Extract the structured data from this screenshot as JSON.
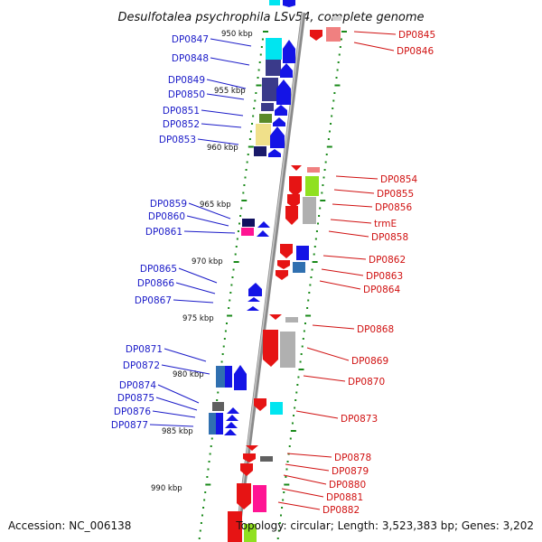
{
  "title": "Desulfotalea psychrophila LSv54, complete genome",
  "footer": {
    "accession": "Accession: NC_006138",
    "summary": "Topology: circular; Length: 3,523,383 bp; Genes: 3,202"
  },
  "scale_labels": [
    "950 kbp",
    "955 kbp",
    "960 kbp",
    "965 kbp",
    "970 kbp",
    "975 kbp",
    "980 kbp",
    "985 kbp",
    "990 kbp"
  ],
  "colors": {
    "minus_strand": "#1414e6",
    "plus_strand": "#e61414",
    "axis": "#8a8a8a",
    "ticks": "#1a8a1a"
  },
  "left_genes": [
    {
      "label": "DP0847",
      "color": "#00e5f0"
    },
    {
      "label": "DP0848",
      "color": "#3a3a8a"
    },
    {
      "label": "DP0849",
      "color": "#3a3a8a"
    },
    {
      "label": "DP0850",
      "color": "#3a3a8a"
    },
    {
      "label": "DP0851",
      "color": "#5a8a2a"
    },
    {
      "label": "DP0852",
      "color": "#f0e08a"
    },
    {
      "label": "DP0853",
      "color": "#1a1a6a"
    },
    {
      "label": "DP0859",
      "color": "#101060"
    },
    {
      "label": "DP0860",
      "color": "#ff1493"
    },
    {
      "label": "DP0861",
      "color": "#1414e6"
    },
    {
      "label": "DP0865",
      "color": "#1414e6"
    },
    {
      "label": "DP0866",
      "color": "#1414e6"
    },
    {
      "label": "DP0867",
      "color": "#1414e6"
    },
    {
      "label": "DP0871",
      "color": "#3070b0"
    },
    {
      "label": "DP0872",
      "color": "#1414e6"
    },
    {
      "label": "DP0874",
      "color": "#606060"
    },
    {
      "label": "DP0875",
      "color": "#1414e6"
    },
    {
      "label": "DP0876",
      "color": "#3070b0"
    },
    {
      "label": "DP0877",
      "color": "#1414e6"
    }
  ],
  "right_genes": [
    {
      "label": "DP0845",
      "color": "#e61414"
    },
    {
      "label": "DP0846",
      "color": "#f08080"
    },
    {
      "label": "DP0854",
      "color": "#e61414"
    },
    {
      "label": "DP0855",
      "color": "#90e020"
    },
    {
      "label": "DP0856",
      "color": "#b0b0b0"
    },
    {
      "label": "trmE",
      "color": "#e61414"
    },
    {
      "label": "DP0858",
      "color": "#e61414"
    },
    {
      "label": "DP0862",
      "color": "#1414e6"
    },
    {
      "label": "DP0863",
      "color": "#3070b0"
    },
    {
      "label": "DP0864",
      "color": "#e61414"
    },
    {
      "label": "DP0868",
      "color": "#b0b0b0"
    },
    {
      "label": "DP0869",
      "color": "#e61414"
    },
    {
      "label": "DP0870",
      "color": "#b0b0b0"
    },
    {
      "label": "DP0873",
      "color": "#00e5f0"
    },
    {
      "label": "DP0878",
      "color": "#e61414"
    },
    {
      "label": "DP0879",
      "color": "#606060"
    },
    {
      "label": "DP0880",
      "color": "#e61414"
    },
    {
      "label": "DP0881",
      "color": "#ff1493"
    },
    {
      "label": "DP0882",
      "color": "#e61414"
    }
  ]
}
